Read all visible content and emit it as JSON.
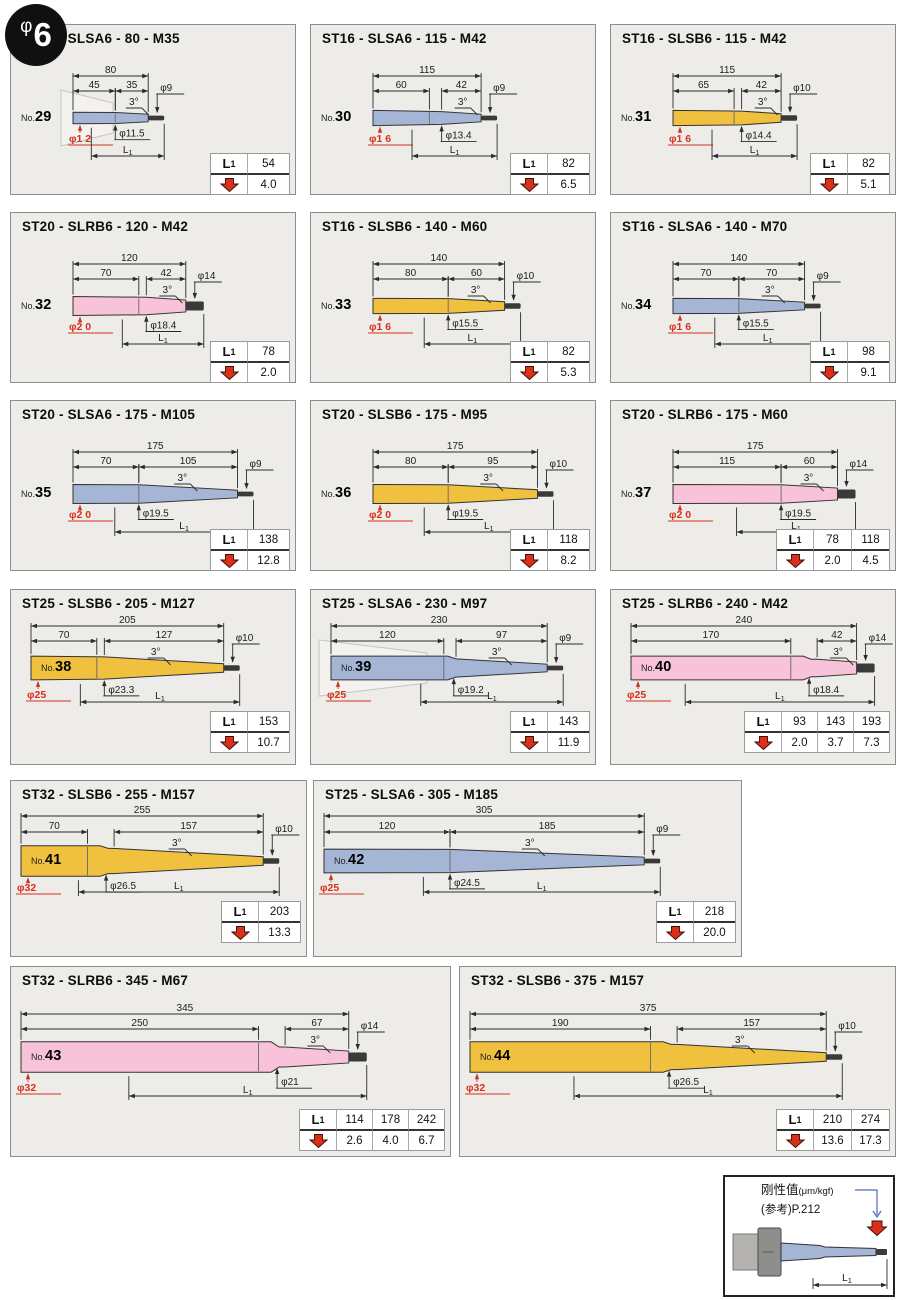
{
  "page": {
    "badge_phi": "φ",
    "badge_num": "6"
  },
  "colors": {
    "blue": "#a4b5d6",
    "yellow": "#efc13f",
    "pink": "#f8c3d9",
    "red": "#d92f1b",
    "tip": "#3a3a3a"
  },
  "legend": {
    "title_main": "刚性值",
    "title_unit": "(μm/kgf)",
    "title_ref": "(参考)P.212",
    "l1": "L1"
  },
  "panels": [
    {
      "no_label": "No.",
      "no": "29",
      "title": "ST12 - SLSA6 - 80 - M35",
      "color": "blue",
      "dims": {
        "total": "80",
        "seg1": "45",
        "seg2": "35",
        "tip": "φ9",
        "angle": "3°",
        "mid": "φ11.5",
        "shank": "φ1 2",
        "l1": "L1"
      },
      "table": {
        "l1": [
          "54"
        ],
        "deflection": [
          "4.0"
        ]
      },
      "draw": {
        "label_inside": false,
        "stepped": false,
        "ghost": true
      }
    },
    {
      "no_label": "No.",
      "no": "30",
      "title": "ST16 - SLSA6 - 115 - M42",
      "color": "blue",
      "dims": {
        "total": "115",
        "seg1": "60",
        "seg2": "42",
        "tip": "φ9",
        "angle": "3°",
        "mid": "φ13.4",
        "shank": "φ1 6",
        "l1": "L1"
      },
      "table": {
        "l1": [
          "82"
        ],
        "deflection": [
          "6.5"
        ]
      },
      "draw": {
        "label_inside": false,
        "stepped": false,
        "ghost": false
      }
    },
    {
      "no_label": "No.",
      "no": "31",
      "title": "ST16 - SLSB6 - 115 - M42",
      "color": "yellow",
      "dims": {
        "total": "115",
        "seg1": "65",
        "seg2": "42",
        "tip": "φ10",
        "angle": "3°",
        "mid": "φ14.4",
        "shank": "φ1 6",
        "l1": "L1"
      },
      "table": {
        "l1": [
          "82"
        ],
        "deflection": [
          "5.1"
        ]
      },
      "draw": {
        "label_inside": false,
        "stepped": false,
        "ghost": false
      }
    },
    {
      "no_label": "No.",
      "no": "32",
      "title": "ST20 - SLRB6 - 120 - M42",
      "color": "pink",
      "dims": {
        "total": "120",
        "seg1": "70",
        "seg2": "42",
        "tip": "φ14",
        "angle": "3°",
        "mid": "φ18.4",
        "shank": "φ2 0",
        "l1": "L1"
      },
      "table": {
        "l1": [
          "78"
        ],
        "deflection": [
          "2.0"
        ]
      },
      "draw": {
        "label_inside": false,
        "stepped": false,
        "ghost": false
      }
    },
    {
      "no_label": "No.",
      "no": "33",
      "title": "ST16 - SLSB6 - 140 - M60",
      "color": "yellow",
      "dims": {
        "total": "140",
        "seg1": "80",
        "seg2": "60",
        "tip": "φ10",
        "angle": "3°",
        "mid": "φ15.5",
        "shank": "φ1 6",
        "l1": "L1"
      },
      "table": {
        "l1": [
          "82"
        ],
        "deflection": [
          "5.3"
        ]
      },
      "draw": {
        "label_inside": false,
        "stepped": false,
        "ghost": false
      }
    },
    {
      "no_label": "No.",
      "no": "34",
      "title": "ST16 - SLSA6 - 140 - M70",
      "color": "blue",
      "dims": {
        "total": "140",
        "seg1": "70",
        "seg2": "70",
        "tip": "φ9",
        "angle": "3°",
        "mid": "φ15.5",
        "shank": "φ1 6",
        "l1": "L1"
      },
      "table": {
        "l1": [
          "98"
        ],
        "deflection": [
          "9.1"
        ]
      },
      "draw": {
        "label_inside": false,
        "stepped": false,
        "ghost": false
      }
    },
    {
      "no_label": "No.",
      "no": "35",
      "title": "ST20 - SLSA6 - 175 - M105",
      "color": "blue",
      "dims": {
        "total": "175",
        "seg1": "70",
        "seg2": "105",
        "tip": "φ9",
        "angle": "3°",
        "mid": "φ19.5",
        "shank": "φ2 0",
        "l1": "L1"
      },
      "table": {
        "l1": [
          "138"
        ],
        "deflection": [
          "12.8"
        ]
      },
      "draw": {
        "label_inside": false,
        "stepped": false,
        "ghost": false
      }
    },
    {
      "no_label": "No.",
      "no": "36",
      "title": "ST20 - SLSB6 - 175 - M95",
      "color": "yellow",
      "dims": {
        "total": "175",
        "seg1": "80",
        "seg2": "95",
        "tip": "φ10",
        "angle": "3°",
        "mid": "φ19.5",
        "shank": "φ2 0",
        "l1": "L1"
      },
      "table": {
        "l1": [
          "118"
        ],
        "deflection": [
          "8.2"
        ]
      },
      "draw": {
        "label_inside": false,
        "stepped": false,
        "ghost": false
      }
    },
    {
      "no_label": "No.",
      "no": "37",
      "title": "ST20 - SLRB6 - 175 - M60",
      "color": "pink",
      "dims": {
        "total": "175",
        "seg1": "115",
        "seg2": "60",
        "tip": "φ14",
        "angle": "3°",
        "mid": "φ19.5",
        "shank": "φ2 0",
        "l1": "L1"
      },
      "table": {
        "l1": [
          "78",
          "118"
        ],
        "deflection": [
          "2.0",
          "4.5"
        ]
      },
      "draw": {
        "label_inside": false,
        "stepped": false,
        "ghost": false
      }
    },
    {
      "no_label": "No.",
      "no": "38",
      "title": "ST25 - SLSB6 - 205 - M127",
      "color": "yellow",
      "dims": {
        "total": "205",
        "seg1": "70",
        "seg2": "127",
        "tip": "φ10",
        "angle": "3°",
        "mid": "φ23.3",
        "shank": "φ25",
        "l1": "L1"
      },
      "table": {
        "l1": [
          "153"
        ],
        "deflection": [
          "10.7"
        ]
      },
      "draw": {
        "label_inside": true,
        "stepped": false,
        "ghost": false
      }
    },
    {
      "no_label": "No.",
      "no": "39",
      "title": "ST25 - SLSA6 - 230 - M97",
      "color": "blue",
      "dims": {
        "total": "230",
        "seg1": "120",
        "seg2": "97",
        "tip": "φ9",
        "angle": "3°",
        "mid": "φ19.2",
        "shank": "φ25",
        "l1": "L1"
      },
      "table": {
        "l1": [
          "143"
        ],
        "deflection": [
          "11.9"
        ]
      },
      "draw": {
        "label_inside": true,
        "stepped": true,
        "ghost": true
      }
    },
    {
      "no_label": "No.",
      "no": "40",
      "title": "ST25 - SLRB6 - 240 - M42",
      "color": "pink",
      "dims": {
        "total": "240",
        "seg1": "170",
        "seg2": "42",
        "tip": "φ14",
        "angle": "3°",
        "mid": "φ18.4",
        "shank": "φ25",
        "l1": "L1"
      },
      "table": {
        "l1": [
          "93",
          "143",
          "193"
        ],
        "deflection": [
          "2.0",
          "3.7",
          "7.3"
        ]
      },
      "draw": {
        "label_inside": true,
        "stepped": true,
        "ghost": false
      }
    },
    {
      "no_label": "No.",
      "no": "41",
      "title": "ST32 - SLSB6 - 255 - M157",
      "color": "yellow",
      "dims": {
        "total": "255",
        "seg1": "70",
        "seg2": "157",
        "tip": "φ10",
        "angle": "3°",
        "mid": "φ26.5",
        "shank": "φ32",
        "l1": "L1"
      },
      "table": {
        "l1": [
          "203"
        ],
        "deflection": [
          "13.3"
        ]
      },
      "draw": {
        "label_inside": true,
        "stepped": true,
        "ghost": false
      }
    },
    {
      "no_label": "No.",
      "no": "42",
      "title": "ST25 - SLSA6 - 305 - M185",
      "color": "blue",
      "dims": {
        "total": "305",
        "seg1": "120",
        "seg2": "185",
        "tip": "φ9",
        "angle": "3°",
        "mid": "φ24.5",
        "shank": "φ25",
        "l1": "L1"
      },
      "table": {
        "l1": [
          "218"
        ],
        "deflection": [
          "20.0"
        ]
      },
      "draw": {
        "label_inside": true,
        "stepped": false,
        "ghost": false
      }
    },
    {
      "no_label": "No.",
      "no": "43",
      "title": "ST32 - SLRB6 - 345 - M67",
      "color": "pink",
      "dims": {
        "total": "345",
        "seg1": "250",
        "seg2": "67",
        "tip": "φ14",
        "angle": "3°",
        "mid": "φ21",
        "shank": "φ32",
        "l1": "L1"
      },
      "table": {
        "l1": [
          "114",
          "178",
          "242"
        ],
        "deflection": [
          "2.6",
          "4.0",
          "6.7"
        ]
      },
      "draw": {
        "label_inside": true,
        "stepped": true,
        "ghost": false
      }
    },
    {
      "no_label": "No.",
      "no": "44",
      "title": "ST32 - SLSB6 - 375 - M157",
      "color": "yellow",
      "dims": {
        "total": "375",
        "seg1": "190",
        "seg2": "157",
        "tip": "φ10",
        "angle": "3°",
        "mid": "φ26.5",
        "shank": "φ32",
        "l1": "L1"
      },
      "table": {
        "l1": [
          "210",
          "274"
        ],
        "deflection": [
          "13.6",
          "17.3"
        ]
      },
      "draw": {
        "label_inside": true,
        "stepped": true,
        "ghost": false
      }
    }
  ]
}
